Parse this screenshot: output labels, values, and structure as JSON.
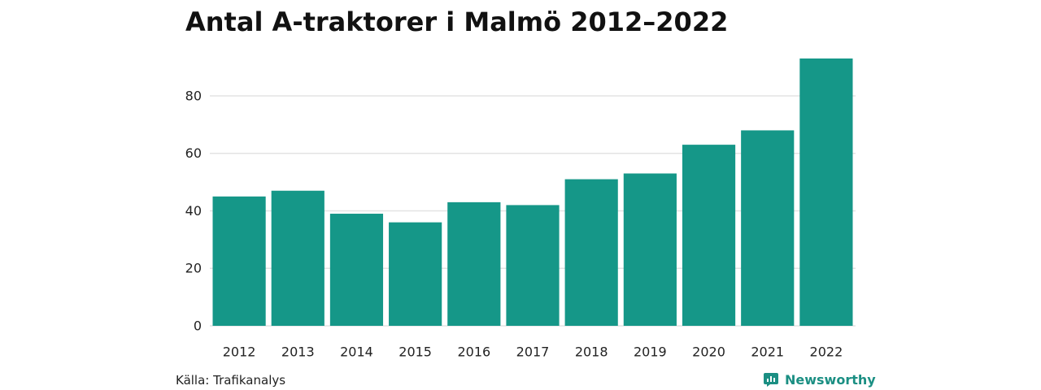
{
  "colors": {
    "bar": "#159788",
    "grid": "#e3e3e3",
    "brand": "#1b8f83"
  },
  "chart_data": {
    "type": "bar",
    "title": "Antal A-traktorer i Malmö 2012–2022",
    "xlabel": "",
    "ylabel": "",
    "categories": [
      "2012",
      "2013",
      "2014",
      "2015",
      "2016",
      "2017",
      "2018",
      "2019",
      "2020",
      "2021",
      "2022"
    ],
    "values": [
      45,
      47,
      39,
      36,
      43,
      42,
      51,
      53,
      63,
      68,
      93
    ],
    "ylim": [
      0,
      93
    ],
    "yticks": [
      0,
      20,
      40,
      60,
      80
    ],
    "grid": true,
    "legend": "none"
  },
  "footer": {
    "source": "Källa: Trafikanalys",
    "brand_name": "Newsworthy",
    "brand_icon": "newsworthy-logo-icon"
  }
}
